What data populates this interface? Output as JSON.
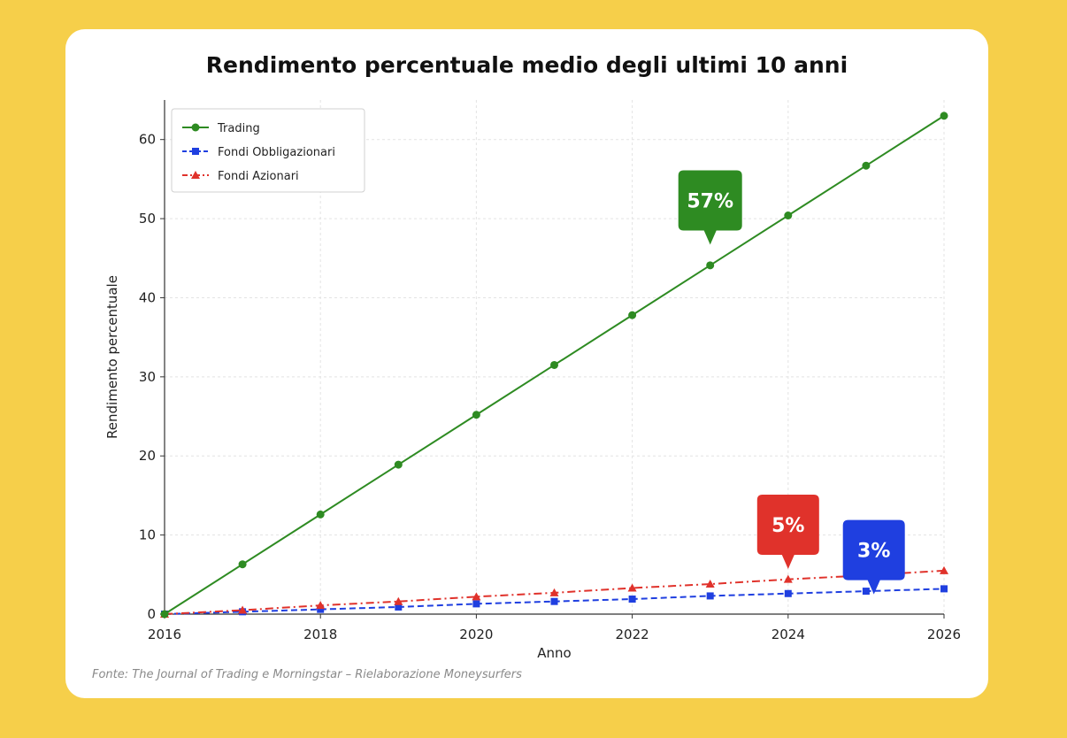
{
  "chart_data": {
    "type": "line",
    "title": "Rendimento percentuale medio degli ultimi 10 anni",
    "xlabel": "Anno",
    "ylabel": "Rendimento percentuale",
    "x": [
      2016,
      2017,
      2018,
      2019,
      2020,
      2021,
      2022,
      2023,
      2024,
      2025,
      2026
    ],
    "xticks": [
      "2016",
      "2018",
      "2020",
      "2022",
      "2024",
      "2026"
    ],
    "yticks": [
      "0",
      "10",
      "20",
      "30",
      "40",
      "50",
      "60"
    ],
    "xlim": [
      2016,
      2026
    ],
    "ylim": [
      0,
      65
    ],
    "grid": true,
    "legend_position": "top-left",
    "series": [
      {
        "name": "Trading",
        "color": "#2E8B22",
        "style": "solid",
        "marker": "circle",
        "values": [
          0,
          6.3,
          12.6,
          18.9,
          25.2,
          31.5,
          37.8,
          44.1,
          50.4,
          56.7,
          63.0
        ]
      },
      {
        "name": "Fondi Obbligazionari",
        "color": "#1F3FE0",
        "style": "dashed",
        "marker": "square",
        "values": [
          0,
          0.3,
          0.6,
          0.9,
          1.3,
          1.6,
          1.9,
          2.3,
          2.6,
          2.9,
          3.2
        ]
      },
      {
        "name": "Fondi Azionari",
        "color": "#E0322B",
        "style": "dashdot",
        "marker": "triangle",
        "values": [
          0,
          0.5,
          1.1,
          1.6,
          2.2,
          2.7,
          3.3,
          3.8,
          4.4,
          4.9,
          5.5
        ]
      }
    ],
    "annotations": [
      {
        "text": "57%",
        "color": "#2E8B22",
        "x": 2023,
        "y": 48.5
      },
      {
        "text": "5%",
        "color": "#E0322B",
        "x": 2024,
        "y": 7.5
      },
      {
        "text": "3%",
        "color": "#1F3FE0",
        "x": 2025.1,
        "y": 4.3
      }
    ]
  },
  "source": "Fonte: The Journal of Trading e Morningstar – Rielaborazione Moneysurfers"
}
